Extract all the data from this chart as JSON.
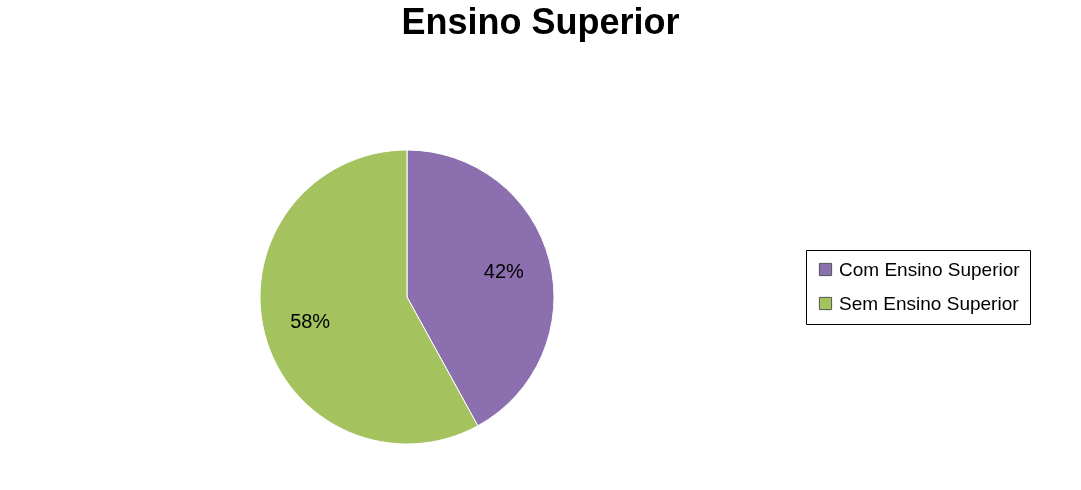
{
  "chart_data": {
    "type": "pie",
    "title": "Ensino Superior",
    "categories": [
      "Com Ensino Superior",
      "Sem Ensino Superior"
    ],
    "values": [
      42,
      58
    ],
    "colors": [
      "#8b6fae",
      "#a4c25e"
    ],
    "value_labels": [
      "42%",
      "58%"
    ],
    "legend": "right"
  }
}
